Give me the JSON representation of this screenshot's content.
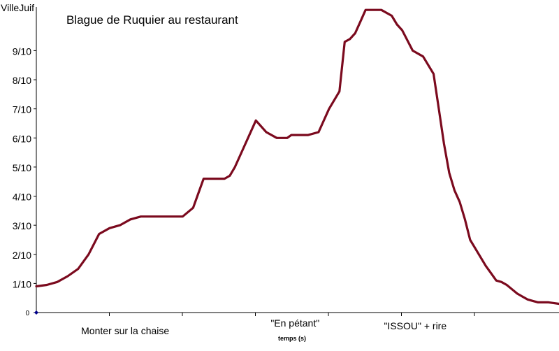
{
  "chart_data": {
    "type": "line",
    "title": "Blague de Ruquier  au restaurant",
    "ylabel": "VilleJuif",
    "xlabel": "temps (s)",
    "ylim": [
      0,
      1.05
    ],
    "xlim": [
      0,
      100
    ],
    "y_ticks": [
      {
        "value": 0,
        "label": "0"
      },
      {
        "value": 0.1,
        "label": "1/10"
      },
      {
        "value": 0.2,
        "label": "2/10"
      },
      {
        "value": 0.3,
        "label": "3/10"
      },
      {
        "value": 0.4,
        "label": "4/10"
      },
      {
        "value": 0.5,
        "label": "5/10"
      },
      {
        "value": 0.6,
        "label": "6/10"
      },
      {
        "value": 0.7,
        "label": "7/10"
      },
      {
        "value": 0.8,
        "label": "8/10"
      },
      {
        "value": 0.9,
        "label": "9/10"
      }
    ],
    "annotations": [
      {
        "text": "Monter sur la chaise",
        "x": 17
      },
      {
        "text": "\"En pétant\"",
        "x": 49.5
      },
      {
        "text": "\"ISSOU\" + rire",
        "x": 72.5
      }
    ],
    "series_color": "#7b0a1e",
    "grid": false,
    "x": [
      0,
      2,
      4,
      6,
      8,
      10,
      12,
      14,
      16,
      18,
      20,
      22,
      24,
      26,
      28,
      30,
      32,
      34,
      35,
      36,
      37,
      38,
      40,
      42,
      44,
      46,
      47,
      48,
      48.8,
      50,
      52,
      54,
      56,
      58,
      59,
      60,
      61,
      62,
      63,
      64,
      65,
      65.5,
      66,
      68,
      69,
      70,
      72,
      74,
      76,
      77,
      78,
      79,
      80,
      81,
      82,
      83,
      84,
      85,
      86,
      87,
      88,
      89,
      90,
      91,
      92,
      93,
      94,
      95,
      96,
      97,
      98,
      100
    ],
    "values": [
      0.09,
      0.095,
      0.105,
      0.125,
      0.15,
      0.2,
      0.27,
      0.29,
      0.3,
      0.32,
      0.33,
      0.33,
      0.33,
      0.33,
      0.33,
      0.36,
      0.46,
      0.46,
      0.46,
      0.46,
      0.47,
      0.5,
      0.58,
      0.66,
      0.62,
      0.6,
      0.6,
      0.6,
      0.61,
      0.61,
      0.61,
      0.62,
      0.7,
      0.76,
      0.93,
      0.94,
      0.96,
      1.0,
      1.04,
      1.04,
      1.04,
      1.04,
      1.04,
      1.02,
      0.99,
      0.97,
      0.9,
      0.88,
      0.82,
      0.7,
      0.58,
      0.48,
      0.42,
      0.38,
      0.32,
      0.25,
      0.22,
      0.19,
      0.16,
      0.135,
      0.11,
      0.105,
      0.095,
      0.08,
      0.065,
      0.055,
      0.045,
      0.04,
      0.035,
      0.035,
      0.035,
      0.03
    ]
  }
}
